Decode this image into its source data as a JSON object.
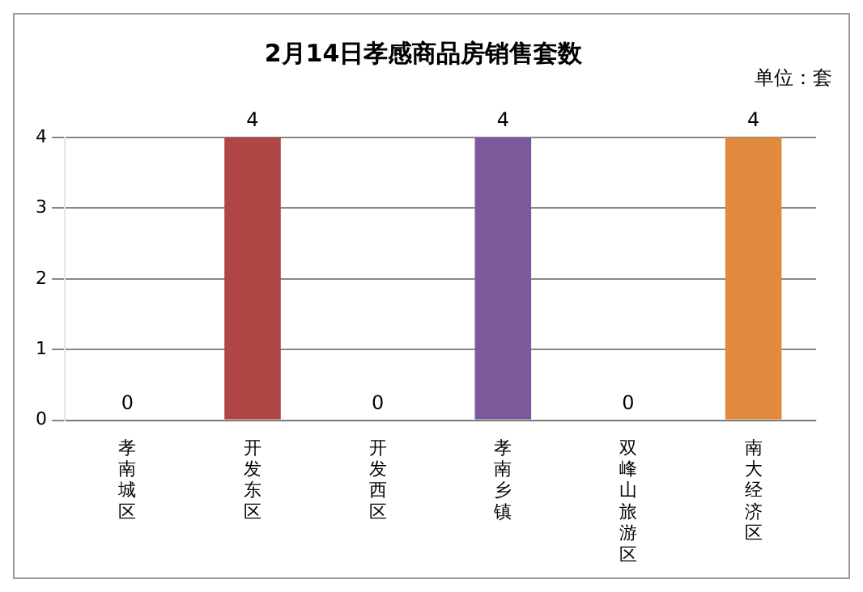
{
  "chart_data": {
    "type": "bar",
    "title": "2月14日孝感商品房销售套数",
    "annotations": [
      "单位：套"
    ],
    "categories": [
      "孝南城区",
      "开发东区",
      "开发西区",
      "孝南乡镇",
      "双峰山旅游区",
      "南大经济区"
    ],
    "values": [
      0,
      4,
      0,
      4,
      0,
      4
    ],
    "colors": [
      "#3a6ea5",
      "#b04545",
      "#8aa84a",
      "#7a5a9a",
      "#2e8ea8",
      "#e08a40"
    ],
    "ylim": [
      0,
      4
    ],
    "yticks": [
      0,
      1,
      2,
      3,
      4
    ],
    "grid": "y",
    "data_labels": true,
    "legend": false
  }
}
